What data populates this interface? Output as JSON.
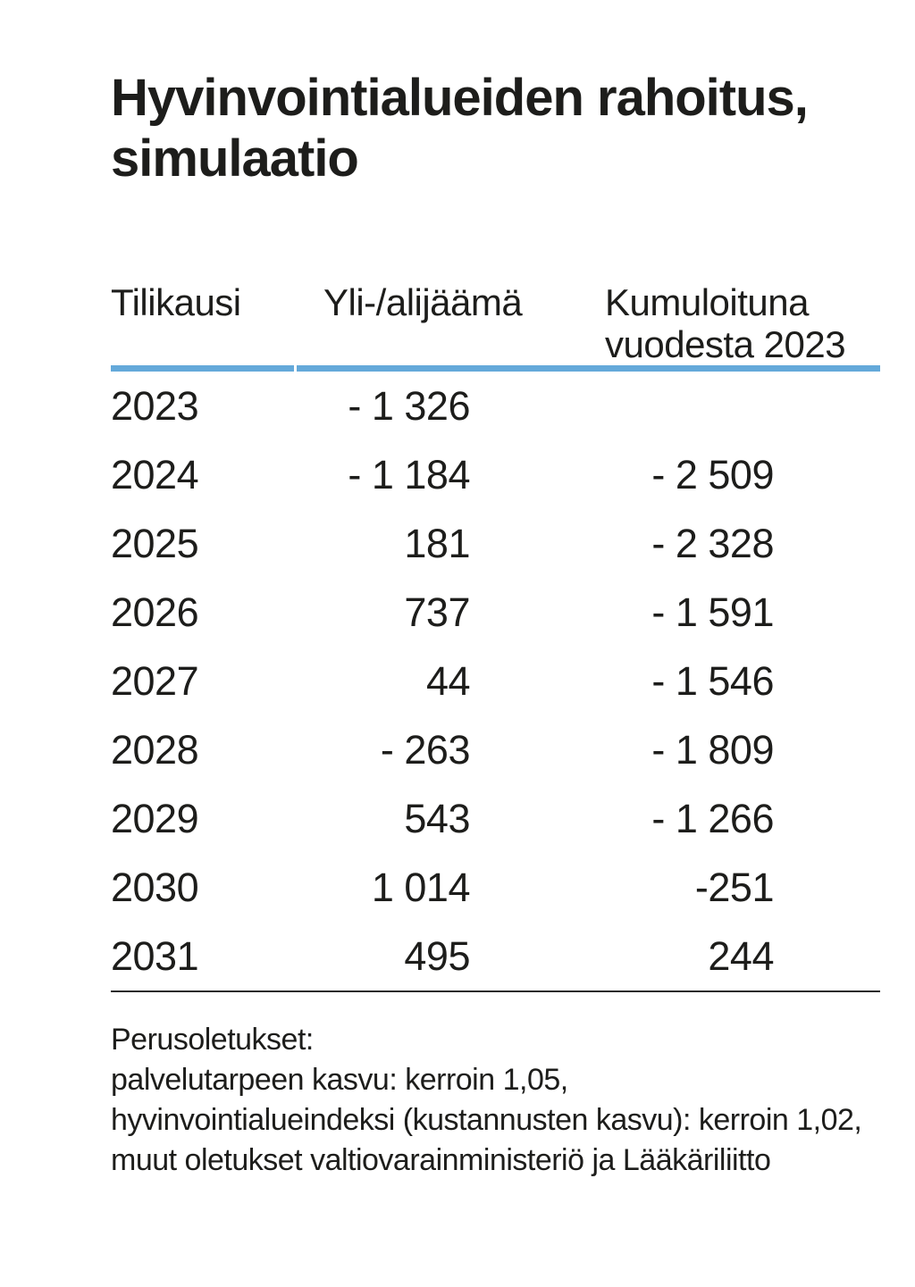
{
  "title": "Hyvinvointialueiden rahoitus,\nsimulaatio",
  "table": {
    "columns": [
      "Tilikausi",
      "Yli-/alijäämä",
      "Kumuloituna\nvuodesta 2023"
    ],
    "rows": [
      {
        "year": "2023",
        "balance": "- 1 326",
        "cumulative": ""
      },
      {
        "year": "2024",
        "balance": "- 1 184",
        "cumulative": "- 2 509"
      },
      {
        "year": "2025",
        "balance": "181",
        "cumulative": "- 2 328"
      },
      {
        "year": "2026",
        "balance": "737",
        "cumulative": "- 1 591"
      },
      {
        "year": "2027",
        "balance": "44",
        "cumulative": "- 1 546"
      },
      {
        "year": "2028",
        "balance": "- 263",
        "cumulative": "- 1 809"
      },
      {
        "year": "2029",
        "balance": "543",
        "cumulative": "- 1 266"
      },
      {
        "year": "2030",
        "balance": "1 014",
        "cumulative": "-251"
      },
      {
        "year": "2031",
        "balance": "495",
        "cumulative": "244"
      }
    ]
  },
  "footnote": {
    "text": "Perusoletukset:\npalvelutarpeen kasvu: kerroin 1,05,\nhyvinvointialueindeksi (kustannusten kasvu): kerroin 1,02,\nmuut oletukset valtiovarainministeriö ja Lääkäriliitto"
  },
  "colors": {
    "accent_blue": "#64a9da",
    "text": "#1d1d1b",
    "rule": "#2b2b2b"
  },
  "chart_data": {
    "type": "table",
    "title": "Hyvinvointialueiden rahoitus, simulaatio",
    "columns": [
      "Tilikausi",
      "Yli-/alijäämä",
      "Kumuloituna vuodesta 2023"
    ],
    "categories": [
      "2023",
      "2024",
      "2025",
      "2026",
      "2027",
      "2028",
      "2029",
      "2030",
      "2031"
    ],
    "series": [
      {
        "name": "Yli-/alijäämä",
        "values": [
          -1326,
          -1184,
          181,
          737,
          44,
          -263,
          543,
          1014,
          495
        ]
      },
      {
        "name": "Kumuloituna vuodesta 2023",
        "values": [
          null,
          -2509,
          -2328,
          -1591,
          -1546,
          -1809,
          -1266,
          -251,
          244
        ]
      }
    ],
    "footnote": "Perusoletukset: palvelutarpeen kasvu: kerroin 1,05, hyvinvointialueindeksi (kustannusten kasvu): kerroin 1,02, muut oletukset valtiovarainministeriö ja Lääkäriliitto"
  }
}
